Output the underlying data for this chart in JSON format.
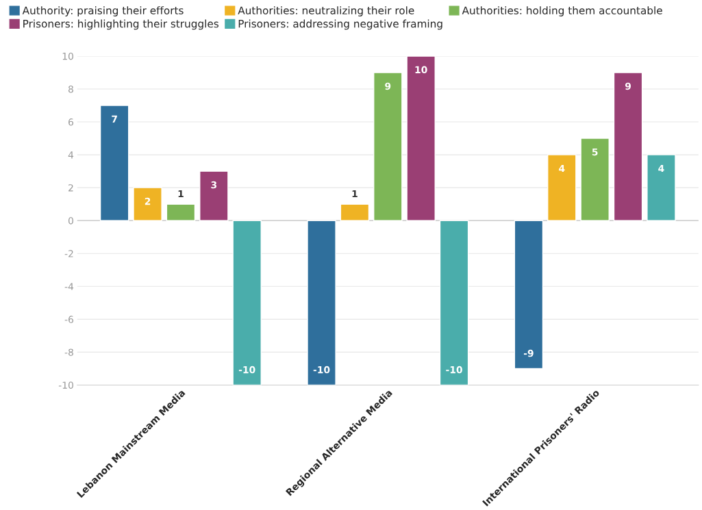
{
  "chart_data": {
    "type": "bar",
    "categories": [
      "Lebanon Mainstream Media",
      "Regional Alternative Media",
      "International Prisoners' Radio"
    ],
    "series": [
      {
        "name": "Authority: praising their efforts",
        "color": "#2f6f9c",
        "values": [
          7,
          -10,
          -9
        ]
      },
      {
        "name": "Authorities: neutralizing their role",
        "color": "#efb324",
        "values": [
          2,
          1,
          4
        ]
      },
      {
        "name": "Authorities: holding them accountable",
        "color": "#7db656",
        "values": [
          1,
          9,
          5
        ]
      },
      {
        "name": "Prisoners: highlighting their struggles",
        "color": "#9a3f74",
        "values": [
          3,
          10,
          9
        ]
      },
      {
        "name": "Prisoners: addressing negative framing",
        "color": "#4aadab",
        "values": [
          -10,
          -10,
          4
        ]
      }
    ],
    "ylim": [
      -10,
      10
    ],
    "yticks": [
      -10,
      -8,
      -6,
      -4,
      -2,
      0,
      2,
      4,
      6,
      8,
      10
    ],
    "grid": "y",
    "legend": "top left",
    "data_labels": true
  }
}
